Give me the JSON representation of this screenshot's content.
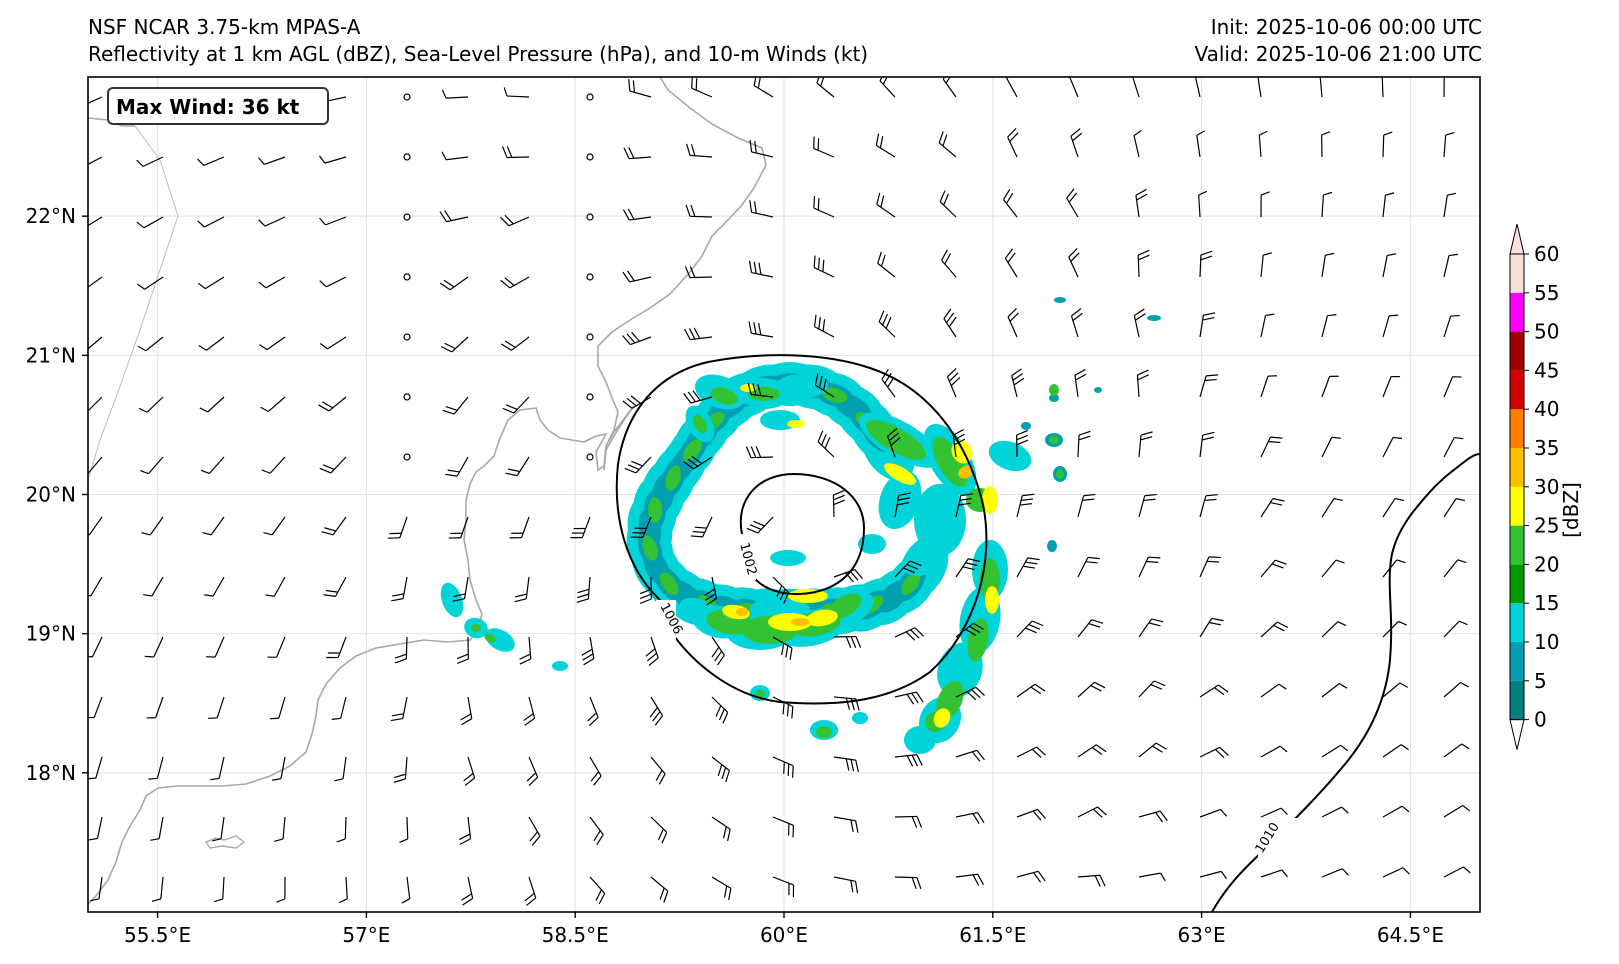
{
  "header": {
    "model": "NSF NCAR 3.75-km MPAS-A",
    "fields": "Reflectivity at 1 km AGL (dBZ), Sea-Level Pressure (hPa), and 10-m Winds (kt)",
    "init": "Init: 2025-10-06 00:00 UTC",
    "valid": "Valid: 2025-10-06 21:00 UTC"
  },
  "map": {
    "max_wind_label": "Max Wind: 36 kt",
    "lon_ticks": [
      "55.5°E",
      "57°E",
      "58.5°E",
      "60°E",
      "61.5°E",
      "63°E",
      "64.5°E"
    ],
    "lat_ticks": [
      "22°N",
      "21°N",
      "20°N",
      "19°N",
      "18°N"
    ],
    "lon_values": [
      55.5,
      57,
      58.5,
      60,
      61.5,
      63,
      64.5
    ],
    "lat_values": [
      22,
      21,
      20,
      19,
      18
    ],
    "extent": {
      "lon_min": 55.0,
      "lon_max": 65.0,
      "lat_min": 17.0,
      "lat_max": 23.0
    },
    "isobars": [
      {
        "label": "1002",
        "value": 1002
      },
      {
        "label": "1006",
        "value": 1006
      },
      {
        "label": "1010",
        "value": 1010
      }
    ],
    "storm_center": {
      "lon": 60.1,
      "lat": 19.75
    },
    "coastline_color": "#a0a0a0"
  },
  "colorbar": {
    "label": "[dBZ]",
    "levels": [
      "0",
      "5",
      "10",
      "15",
      "20",
      "25",
      "30",
      "35",
      "40",
      "45",
      "50",
      "55",
      "60"
    ],
    "colors": [
      "#018080",
      "#00a0b0",
      "#00d4d8",
      "#009a00",
      "#33c233",
      "#ffff00",
      "#ffc000",
      "#ff7f00",
      "#d00000",
      "#a00000",
      "#ff00ff",
      "#f8e0d8"
    ]
  }
}
